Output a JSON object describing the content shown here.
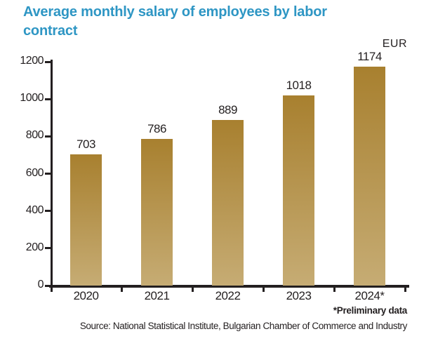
{
  "title": "Average monthly salary of employees by labor contract",
  "unit_label": "EUR",
  "footnote": "*Preliminary data",
  "source": "Source: National Statistical Institute, Bulgarian Chamber of Commerce and Industry",
  "colors": {
    "title_blue": "#2e96c4",
    "bar_gradient_top": "#a8802f",
    "bar_gradient_bottom": "#c6ac74",
    "axis_black": "#231f20"
  },
  "chart_data": {
    "type": "bar",
    "categories": [
      "2020",
      "2021",
      "2022",
      "2023",
      "2024*"
    ],
    "values": [
      703,
      786,
      889,
      1018,
      1174
    ],
    "title": "Average monthly salary of employees by labor contract",
    "xlabel": "",
    "ylabel": "EUR",
    "ylim": [
      0,
      1200
    ],
    "yticks": [
      0,
      200,
      400,
      600,
      800,
      1000,
      1200
    ],
    "grid": false,
    "legend": false,
    "data_labels": true
  }
}
